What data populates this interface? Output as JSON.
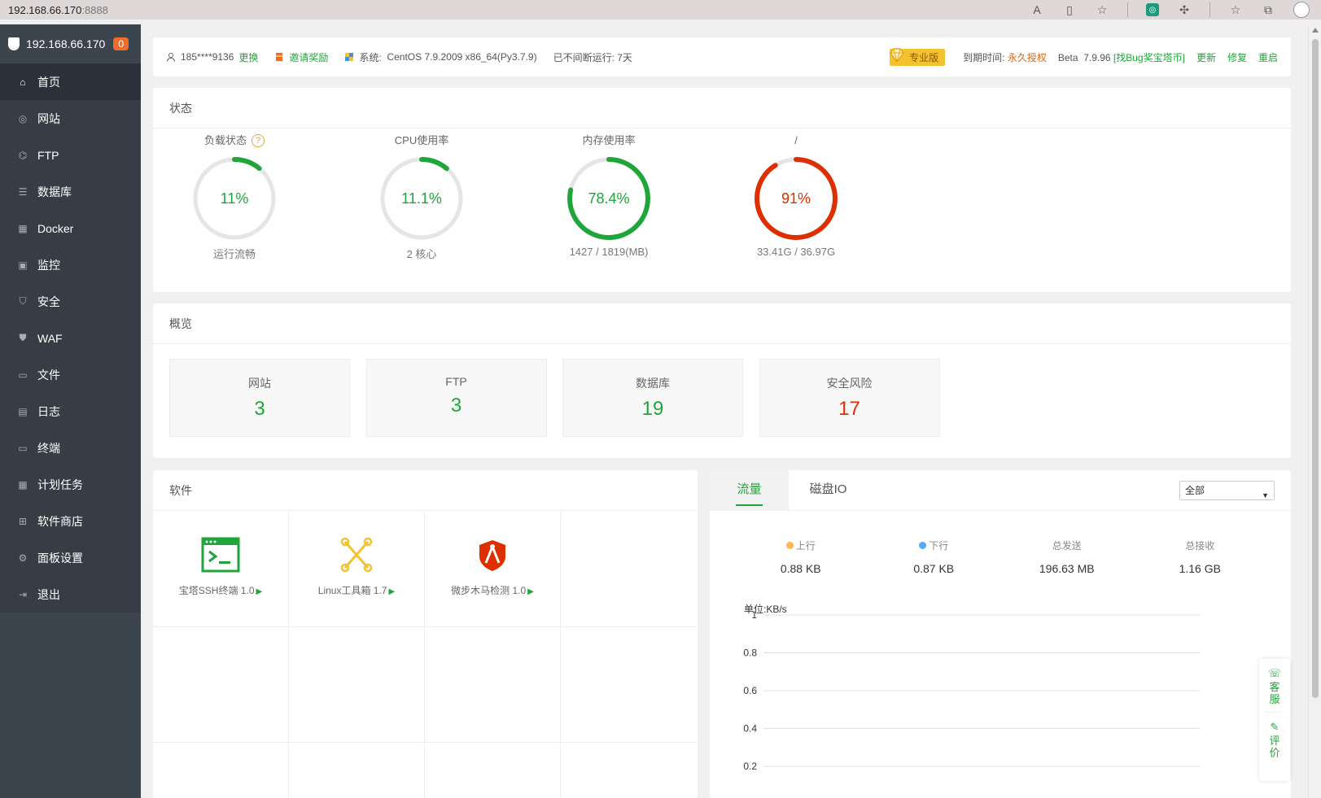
{
  "browser": {
    "url_host": "192.168.66.170",
    "url_port": ":8888"
  },
  "sidebar": {
    "server_ip": "192.168.66.170",
    "badge": "0",
    "items": [
      {
        "label": "首页",
        "icon": "home-icon"
      },
      {
        "label": "网站",
        "icon": "globe-icon"
      },
      {
        "label": "FTP",
        "icon": "ftp-icon"
      },
      {
        "label": "数据库",
        "icon": "database-icon"
      },
      {
        "label": "Docker",
        "icon": "docker-icon"
      },
      {
        "label": "监控",
        "icon": "monitor-icon"
      },
      {
        "label": "安全",
        "icon": "shield-icon"
      },
      {
        "label": "WAF",
        "icon": "waf-icon"
      },
      {
        "label": "文件",
        "icon": "folder-icon"
      },
      {
        "label": "日志",
        "icon": "log-icon"
      },
      {
        "label": "终端",
        "icon": "terminal-icon"
      },
      {
        "label": "计划任务",
        "icon": "calendar-icon"
      },
      {
        "label": "软件商店",
        "icon": "apps-icon"
      },
      {
        "label": "面板设置",
        "icon": "settings-icon"
      },
      {
        "label": "退出",
        "icon": "logout-icon"
      }
    ]
  },
  "topbar": {
    "user": "185****9136",
    "change": "更换",
    "invite": "邀请奖励",
    "system_label": "系统:",
    "system_value": "CentOS 7.9.2009 x86_64(Py3.7.9)",
    "uptime": "已不间断运行: 7天",
    "pro_label": "专业版",
    "expire_label": "到期时间:",
    "expire_value": "永久授权",
    "beta_label": "Beta",
    "version": "7.9.96",
    "bug_link": "[找Bug奖宝塔币]",
    "update": "更新",
    "repair": "修复",
    "restart": "重启"
  },
  "status": {
    "title": "状态",
    "gauges": [
      {
        "title": "负载状态",
        "value": "11%",
        "percent": 11,
        "sub": "运行流畅",
        "color": "#20a53a"
      },
      {
        "title": "CPU使用率",
        "value": "11.1%",
        "percent": 11.1,
        "sub": "2 核心",
        "color": "#20a53a"
      },
      {
        "title": "内存使用率",
        "value": "78.4%",
        "percent": 78.4,
        "sub": "1427 / 1819(MB)",
        "color": "#20a53a"
      },
      {
        "title": "/",
        "value": "91%",
        "percent": 91,
        "sub": "33.41G / 36.97G",
        "color": "#dd2f00"
      }
    ]
  },
  "overview": {
    "title": "概览",
    "boxes": [
      {
        "label": "网站",
        "value": "3",
        "color": "#20a53a"
      },
      {
        "label": "FTP",
        "value": "3",
        "color": "#20a53a"
      },
      {
        "label": "数据库",
        "value": "19",
        "color": "#20a53a"
      },
      {
        "label": "安全风险",
        "value": "17",
        "color": "#dd2f00"
      }
    ]
  },
  "software": {
    "title": "软件",
    "items": [
      {
        "name": "宝塔SSH终端 1.0",
        "icon": "ssh-terminal-icon"
      },
      {
        "name": "Linux工具箱 1.7",
        "icon": "toolbox-icon"
      },
      {
        "name": "微步木马检测 1.0",
        "icon": "trojan-scan-icon"
      }
    ]
  },
  "traffic": {
    "tab_traffic": "流量",
    "tab_disk": "磁盘IO",
    "select_value": "全部",
    "up_label": "上行",
    "up_value": "0.88 KB",
    "down_label": "下行",
    "down_value": "0.87 KB",
    "sent_label": "总发送",
    "sent_value": "196.63 MB",
    "recv_label": "总接收",
    "recv_value": "1.16 GB",
    "unit": "单位:KB/s",
    "up_color": "#f7b851",
    "down_color": "#52a9ff"
  },
  "chart_data": {
    "type": "line",
    "title": "",
    "ylabel": "单位:KB/s",
    "ylim": [
      0,
      1
    ],
    "yticks": [
      "1",
      "0.8",
      "0.6",
      "0.4",
      "0.2"
    ],
    "series": [],
    "grid": true
  },
  "float_side": {
    "service": "客服",
    "review": "评价"
  }
}
